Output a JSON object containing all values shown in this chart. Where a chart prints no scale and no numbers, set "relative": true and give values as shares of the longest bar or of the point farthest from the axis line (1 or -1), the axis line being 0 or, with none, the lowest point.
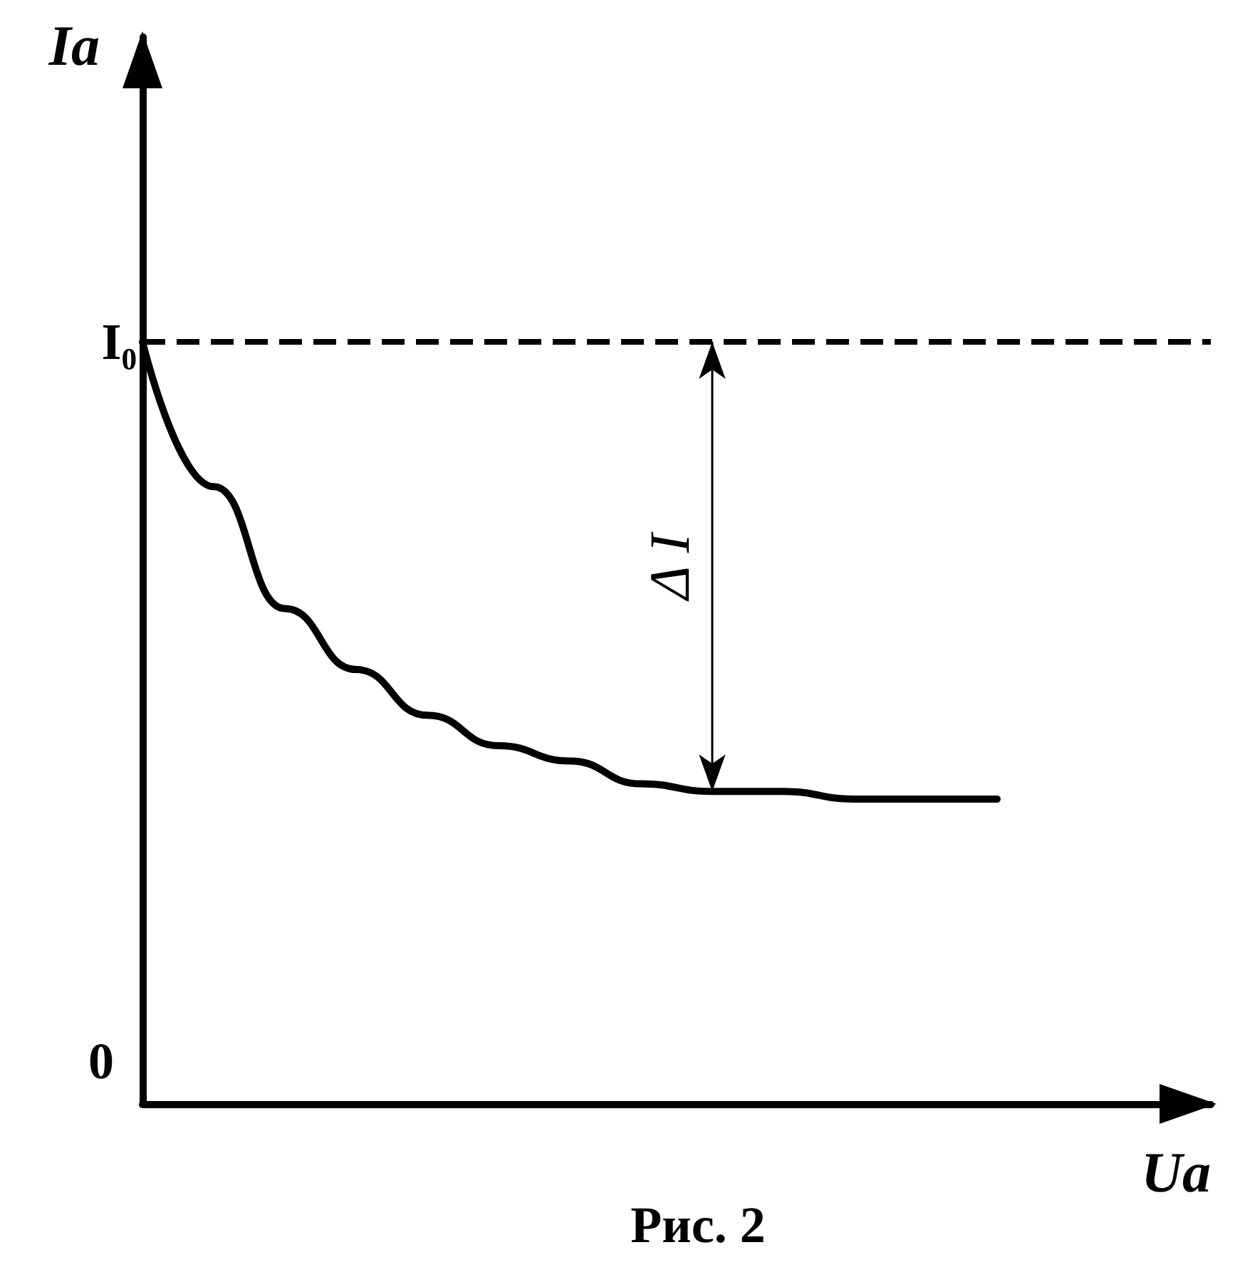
{
  "chart_data": {
    "type": "line",
    "relative": true,
    "xlabel": "Ua",
    "ylabel": "Ia",
    "categories": [
      null,
      null,
      null,
      null,
      null,
      null,
      null,
      null,
      null,
      null,
      null,
      null,
      null,
      null,
      null,
      null
    ],
    "series": [
      {
        "color": "#000000",
        "values": [
          1,
          0.81,
          0.65,
          0.57,
          0.51,
          0.47,
          0.45,
          0.42,
          0.41,
          0.41,
          0.4,
          0.4,
          0.4,
          null,
          null,
          null
        ]
      }
    ],
    "ref_lines": [
      {
        "axis": "y",
        "value": 1,
        "label": "I₀",
        "color": "#000000",
        "line_style": "dashed"
      }
    ],
    "annotations": [
      "Δ I",
      "0",
      "Рис. 2"
    ],
    "marker": "none",
    "line_style": "solid",
    "grid": false
  }
}
